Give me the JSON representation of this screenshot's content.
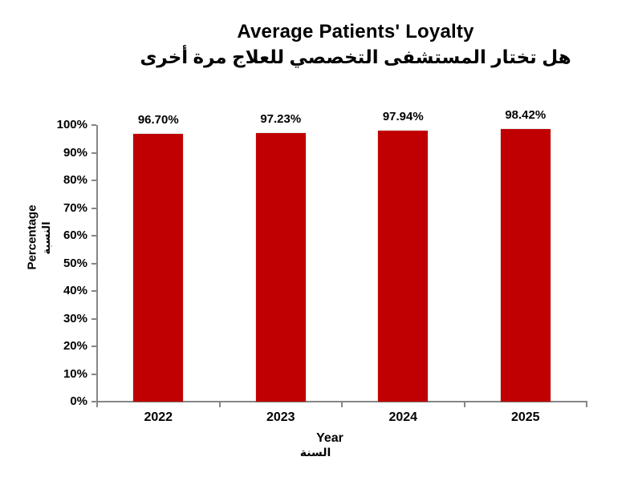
{
  "chart_data": {
    "type": "bar",
    "title": "Average Patients' Loyalty",
    "subtitle": "هل تختار المستشفى التخصصي للعلاج مرة أخرى",
    "categories": [
      "2022",
      "2023",
      "2024",
      "2025"
    ],
    "values": [
      96.7,
      97.23,
      97.94,
      98.42
    ],
    "data_labels": [
      "96.70%",
      "97.23%",
      "97.94%",
      "98.42%"
    ],
    "xlabel": "Year",
    "xlabel_secondary": "السنة",
    "ylabel": "Percentage",
    "ylabel_secondary": "النسبة",
    "ylim": [
      0,
      100
    ],
    "ytick_step": 10,
    "ytick_labels": [
      "0%",
      "10%",
      "20%",
      "30%",
      "40%",
      "50%",
      "60%",
      "70%",
      "80%",
      "90%",
      "100%"
    ],
    "grid": false,
    "legend": false,
    "bar_color": "#C00000",
    "axis_color": "#868686",
    "text_color": "#000000",
    "background": "#FFFFFF"
  }
}
